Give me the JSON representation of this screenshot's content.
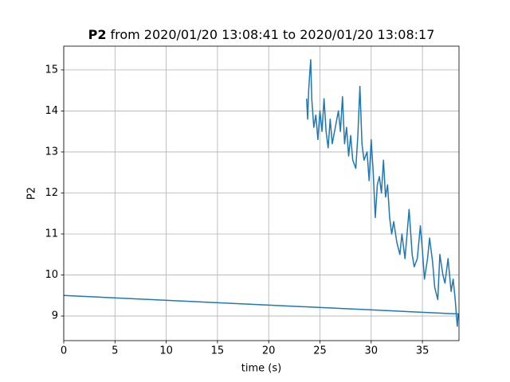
{
  "chart_data": {
    "type": "line",
    "title_bold": "P2",
    "title": "from 2020/01/20 13:08:41 to 2020/01/20 13:08:17",
    "xlabel": "time (s)",
    "ylabel": "P2",
    "x": [
      23.7,
      23.8,
      23.9,
      24.0,
      24.1,
      24.2,
      24.4,
      24.6,
      24.8,
      25.0,
      25.2,
      25.4,
      25.6,
      25.8,
      26.0,
      26.2,
      26.5,
      26.8,
      27.0,
      27.2,
      27.4,
      27.6,
      27.8,
      28.0,
      28.2,
      28.5,
      28.7,
      28.9,
      29.1,
      29.3,
      29.6,
      29.8,
      30.0,
      30.2,
      30.4,
      30.6,
      30.8,
      31.0,
      31.2,
      31.4,
      31.6,
      31.8,
      32.0,
      32.2,
      32.5,
      32.8,
      33.0,
      33.3,
      33.5,
      33.7,
      34.0,
      34.2,
      34.5,
      34.8,
      35.0,
      35.2,
      35.5,
      35.7,
      36.0,
      36.2,
      36.5,
      36.7,
      37.0,
      37.2,
      37.5,
      37.8,
      38.0,
      38.2,
      38.4,
      38.5,
      0
    ],
    "series": [
      {
        "name": "P2",
        "color": "#1f77b4",
        "values": [
          14.3,
          13.8,
          14.5,
          14.9,
          15.25,
          14.3,
          13.6,
          13.9,
          13.3,
          14.0,
          13.5,
          14.3,
          13.5,
          13.1,
          13.8,
          13.2,
          13.6,
          14.0,
          13.5,
          14.35,
          13.2,
          13.6,
          12.9,
          13.4,
          12.8,
          12.6,
          13.4,
          14.6,
          13.2,
          12.8,
          13.0,
          12.3,
          13.3,
          12.5,
          11.4,
          12.2,
          12.4,
          12.0,
          12.8,
          11.9,
          12.2,
          11.4,
          11.0,
          11.3,
          10.8,
          10.5,
          11.0,
          10.4,
          11.0,
          11.6,
          10.5,
          10.2,
          10.4,
          11.2,
          10.6,
          9.9,
          10.4,
          10.9,
          10.3,
          9.7,
          9.4,
          10.5,
          10.0,
          9.8,
          10.4,
          9.6,
          9.9,
          9.4,
          8.75,
          9.05,
          9.5
        ]
      }
    ],
    "xlim": [
      0,
      38.57
    ],
    "xticks": [
      0,
      5,
      10,
      15,
      20,
      25,
      30,
      35
    ],
    "ylim": [
      8.4,
      15.58
    ],
    "yticks": [
      9,
      10,
      11,
      12,
      13,
      14,
      15
    ],
    "grid": true
  }
}
